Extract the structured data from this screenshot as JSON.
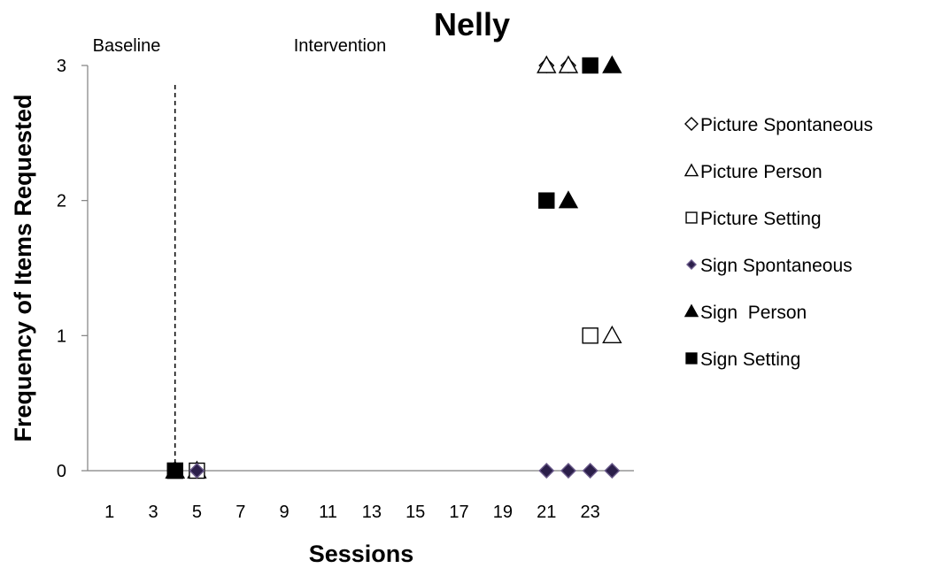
{
  "chart_data": {
    "type": "scatter",
    "title": "Nelly",
    "xlabel": "Sessions",
    "ylabel": "Frequency of Items Requested",
    "xlim": [
      0,
      25
    ],
    "ylim": [
      0,
      3
    ],
    "x_tick_labels": [
      "1",
      "3",
      "5",
      "7",
      "9",
      "11",
      "13",
      "15",
      "17",
      "19",
      "21",
      "23"
    ],
    "x_ticks": [
      1,
      3,
      5,
      7,
      9,
      11,
      13,
      15,
      17,
      19,
      21,
      23
    ],
    "y_ticks": [
      0,
      1,
      2,
      3
    ],
    "y_tick_labels": [
      "0",
      "1",
      "2",
      "3"
    ],
    "grid": false,
    "legend_placement": "right",
    "phase_change_x": 4,
    "phases": [
      {
        "label": "Baseline"
      },
      {
        "label": "Intervention"
      }
    ],
    "series": [
      {
        "name": "Picture Spontaneous",
        "marker": "diamond-open",
        "color": "#000000",
        "points": [
          {
            "x": 4,
            "y": 0
          },
          {
            "x": 5,
            "y": 0
          },
          {
            "x": 21,
            "y": 3
          },
          {
            "x": 22,
            "y": 3
          }
        ]
      },
      {
        "name": "Picture Person",
        "marker": "triangle-open",
        "color": "#000000",
        "points": [
          {
            "x": 4,
            "y": 0
          },
          {
            "x": 5,
            "y": 0
          },
          {
            "x": 21,
            "y": 3
          },
          {
            "x": 22,
            "y": 3
          },
          {
            "x": 24,
            "y": 1
          }
        ]
      },
      {
        "name": "Picture Setting",
        "marker": "square-open",
        "color": "#000000",
        "points": [
          {
            "x": 4,
            "y": 0
          },
          {
            "x": 5,
            "y": 0
          },
          {
            "x": 23,
            "y": 1
          }
        ]
      },
      {
        "name": "Sign Spontaneous",
        "marker": "diamond-filled",
        "color": "#2b1f4a",
        "points": [
          {
            "x": 4,
            "y": 0
          },
          {
            "x": 5,
            "y": 0
          },
          {
            "x": 21,
            "y": 0
          },
          {
            "x": 22,
            "y": 0
          },
          {
            "x": 23,
            "y": 0
          },
          {
            "x": 24,
            "y": 0
          }
        ]
      },
      {
        "name": "Sign  Person",
        "marker": "triangle-filled",
        "color": "#000000",
        "points": [
          {
            "x": 4,
            "y": 0
          },
          {
            "x": 22,
            "y": 2
          },
          {
            "x": 24,
            "y": 3
          }
        ]
      },
      {
        "name": "Sign Setting",
        "marker": "square-filled",
        "color": "#000000",
        "points": [
          {
            "x": 4,
            "y": 0
          },
          {
            "x": 21,
            "y": 2
          },
          {
            "x": 23,
            "y": 3
          }
        ]
      }
    ]
  }
}
